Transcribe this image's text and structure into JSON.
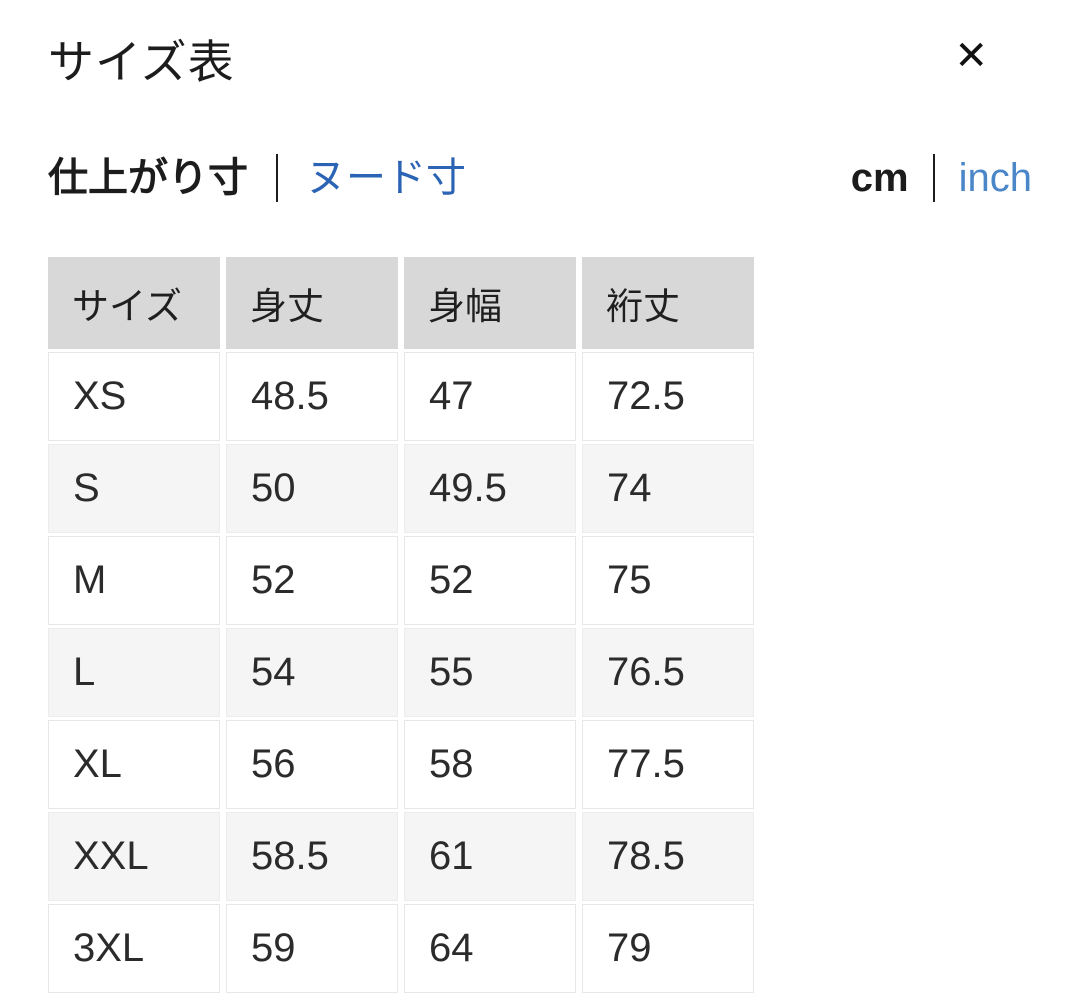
{
  "modal": {
    "title": "サイズ表",
    "close_icon": "✕"
  },
  "tabs": {
    "measure_type": {
      "options": [
        {
          "label": "仕上がり寸",
          "selected": true
        },
        {
          "label": "ヌード寸",
          "selected": false
        }
      ]
    },
    "unit": {
      "options": [
        {
          "label": "cm",
          "selected": true
        },
        {
          "label": "inch",
          "selected": false
        }
      ]
    }
  },
  "chart_data": {
    "type": "table",
    "title": "サイズ表",
    "columns": [
      "サイズ",
      "身丈",
      "身幅",
      "裄丈"
    ],
    "unit": "cm"
  },
  "table": {
    "columns": [
      "サイズ",
      "身丈",
      "身幅",
      "裄丈"
    ],
    "rows": [
      [
        "XS",
        "48.5",
        "47",
        "72.5"
      ],
      [
        "S",
        "50",
        "49.5",
        "74"
      ],
      [
        "M",
        "52",
        "52",
        "75"
      ],
      [
        "L",
        "54",
        "55",
        "76.5"
      ],
      [
        "XL",
        "56",
        "58",
        "77.5"
      ],
      [
        "XXL",
        "58.5",
        "61",
        "78.5"
      ],
      [
        "3XL",
        "59",
        "64",
        "79"
      ]
    ]
  },
  "colors": {
    "header_cell_bg": "#d8d8d8",
    "alt_row_bg": "#f5f5f5",
    "cell_border": "#e7e7e7",
    "text": "#1c1c1c",
    "link_blue_dark": "#2b64b4",
    "link_blue_light": "#4a86c8"
  }
}
